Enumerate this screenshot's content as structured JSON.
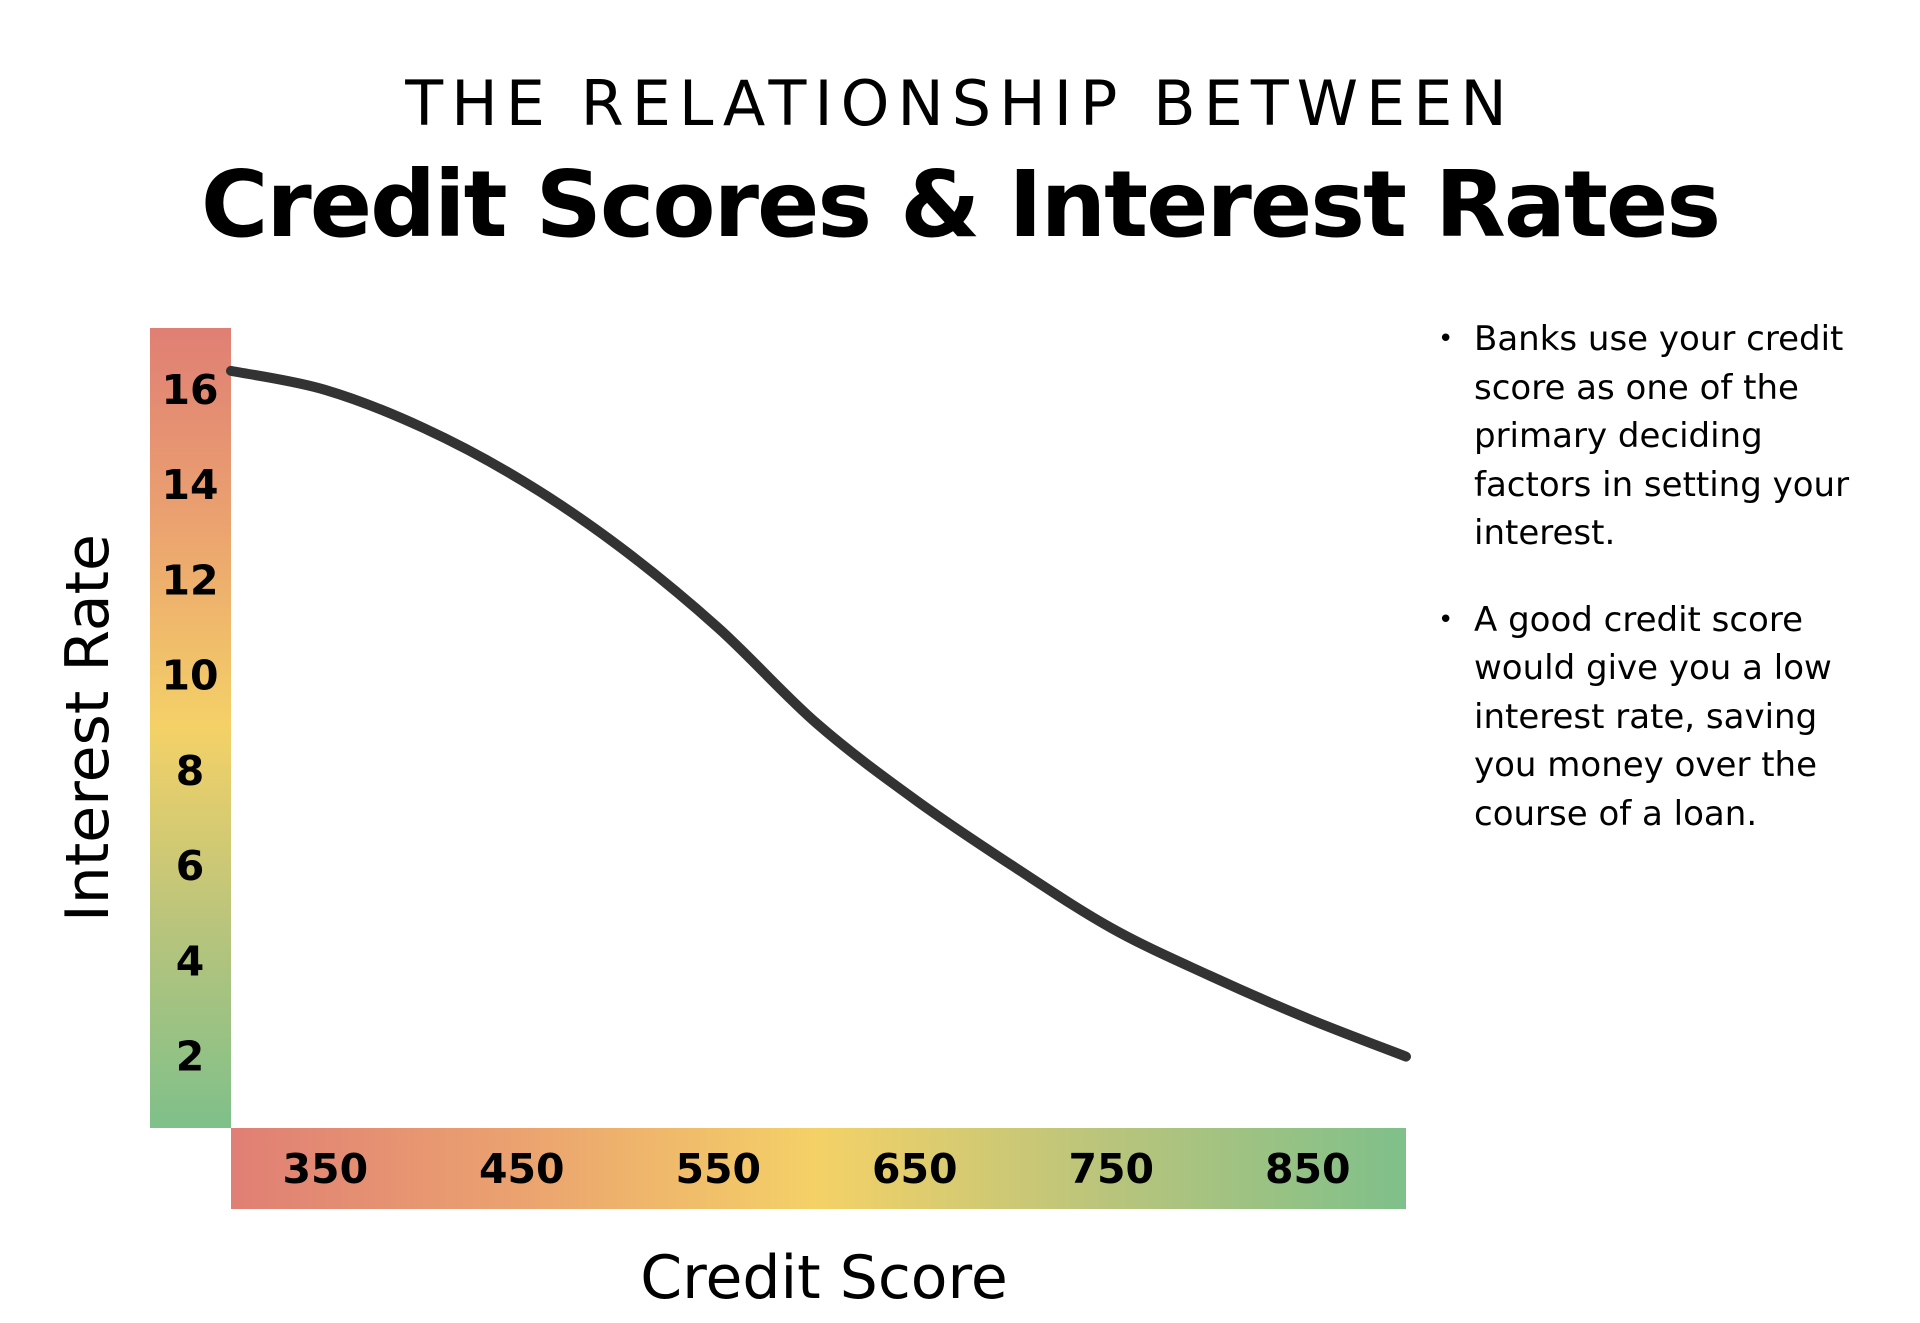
{
  "title": {
    "top_line": "THE RELATIONSHIP BETWEEN",
    "main_line": "Credit Scores & Interest Rates"
  },
  "chart_data": {
    "type": "line",
    "title": "THE RELATIONSHIP BETWEEN Credit Scores & Interest Rates",
    "xlabel": "Credit Score",
    "ylabel": "Interest Rate",
    "x_ticks": [
      "350",
      "450",
      "550",
      "650",
      "750",
      "850"
    ],
    "y_ticks": [
      "16",
      "14",
      "12",
      "10",
      "8",
      "6",
      "4",
      "2"
    ],
    "xlim": [
      302,
      900
    ],
    "ylim": [
      0.5,
      17.3
    ],
    "grid": false,
    "legend": "none",
    "series": [
      {
        "x": [
          302,
          350,
          400,
          450,
          500,
          550,
          600,
          650,
          700,
          750,
          800,
          850,
          900
        ],
        "y": [
          16.4,
          16.0,
          15.2,
          14.1,
          12.7,
          11.0,
          9.0,
          7.4,
          6.0,
          4.7,
          3.7,
          2.8,
          2.0
        ]
      }
    ],
    "gradient_colors": [
      "#e07f75",
      "#eba36f",
      "#f4d167",
      "#b8c47c",
      "#7fc08a"
    ],
    "line_color": "#333333"
  },
  "notes": [
    {
      "bullet": "•",
      "lines": [
        "Banks use your credit",
        "score as one of the",
        "primary deciding",
        "factors in setting your",
        "interest."
      ]
    },
    {
      "bullet": "•",
      "lines": [
        "A good credit score",
        "would give you a low",
        "interest rate, saving",
        "you money over the",
        "course of a loan."
      ]
    }
  ]
}
